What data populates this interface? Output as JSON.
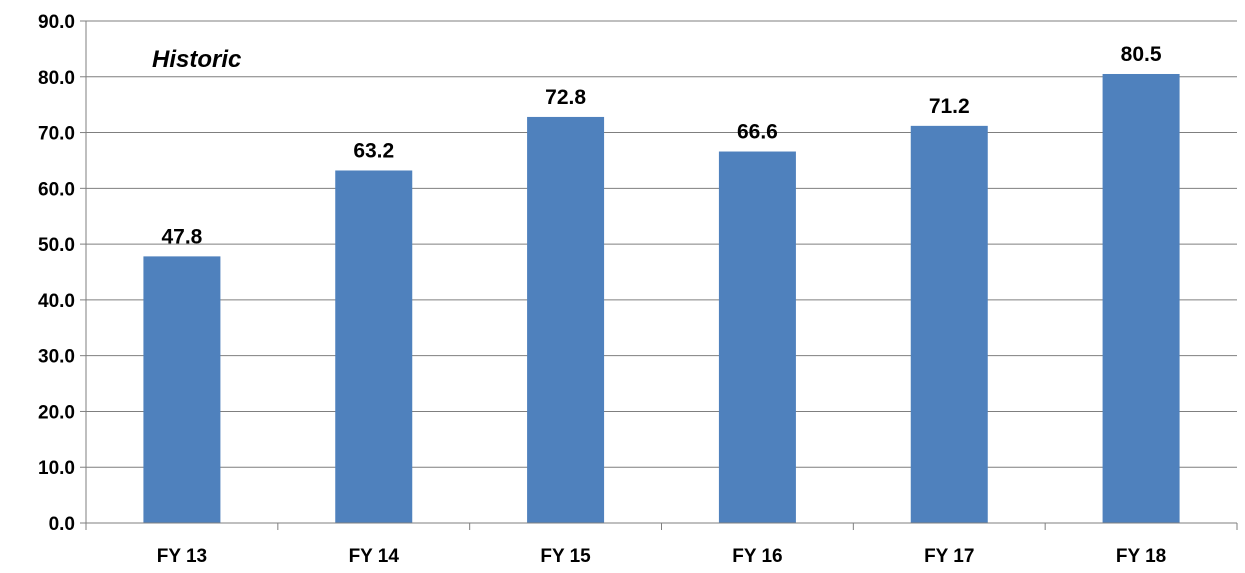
{
  "chart_data": {
    "type": "bar",
    "categories": [
      "FY 13",
      "FY 14",
      "FY 15",
      "FY 16",
      "FY 17",
      "FY 18"
    ],
    "values": [
      47.8,
      63.2,
      72.8,
      66.6,
      71.2,
      80.5
    ],
    "value_labels": [
      "47.8",
      "63.2",
      "72.8",
      "66.6",
      "71.2",
      "80.5"
    ],
    "yticks": [
      "0.0",
      "10.0",
      "20.0",
      "30.0",
      "40.0",
      "50.0",
      "60.0",
      "70.0",
      "80.0",
      "90.0"
    ],
    "ylim": [
      0,
      90
    ],
    "ytick_step": 10,
    "grid": true,
    "annotation": "Historic",
    "title": "",
    "xlabel": "",
    "ylabel": "",
    "colors": {
      "bar": "#4f81bd",
      "grid": "#7f7f7f",
      "axis": "#7f7f7f",
      "text": "#000000"
    }
  }
}
